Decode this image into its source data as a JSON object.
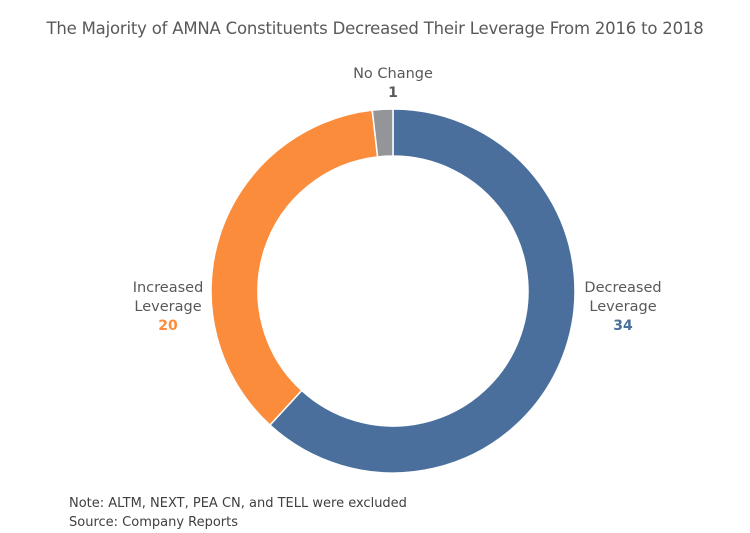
{
  "chart_data": {
    "type": "pie",
    "variant": "donut",
    "title": "The Majority of AMNA Constituents Decreased Their Leverage From 2016 to 2018",
    "start": "top, clockwise",
    "slices": [
      {
        "name": "Decreased Leverage",
        "label_lines": [
          "Decreased",
          "Leverage"
        ],
        "value": 34,
        "color": "#4A6F9D"
      },
      {
        "name": "Increased Leverage",
        "label_lines": [
          "Increased",
          "Leverage"
        ],
        "value": 20,
        "color": "#FB8C3C"
      },
      {
        "name": "No Change",
        "label_lines": [
          "No Change"
        ],
        "value": 1,
        "color": "#939598"
      }
    ],
    "total": 55
  },
  "footer": {
    "note": "Note: ALTM, NEXT, PEA CN, and TELL were excluded",
    "source": "Source: Company Reports"
  }
}
